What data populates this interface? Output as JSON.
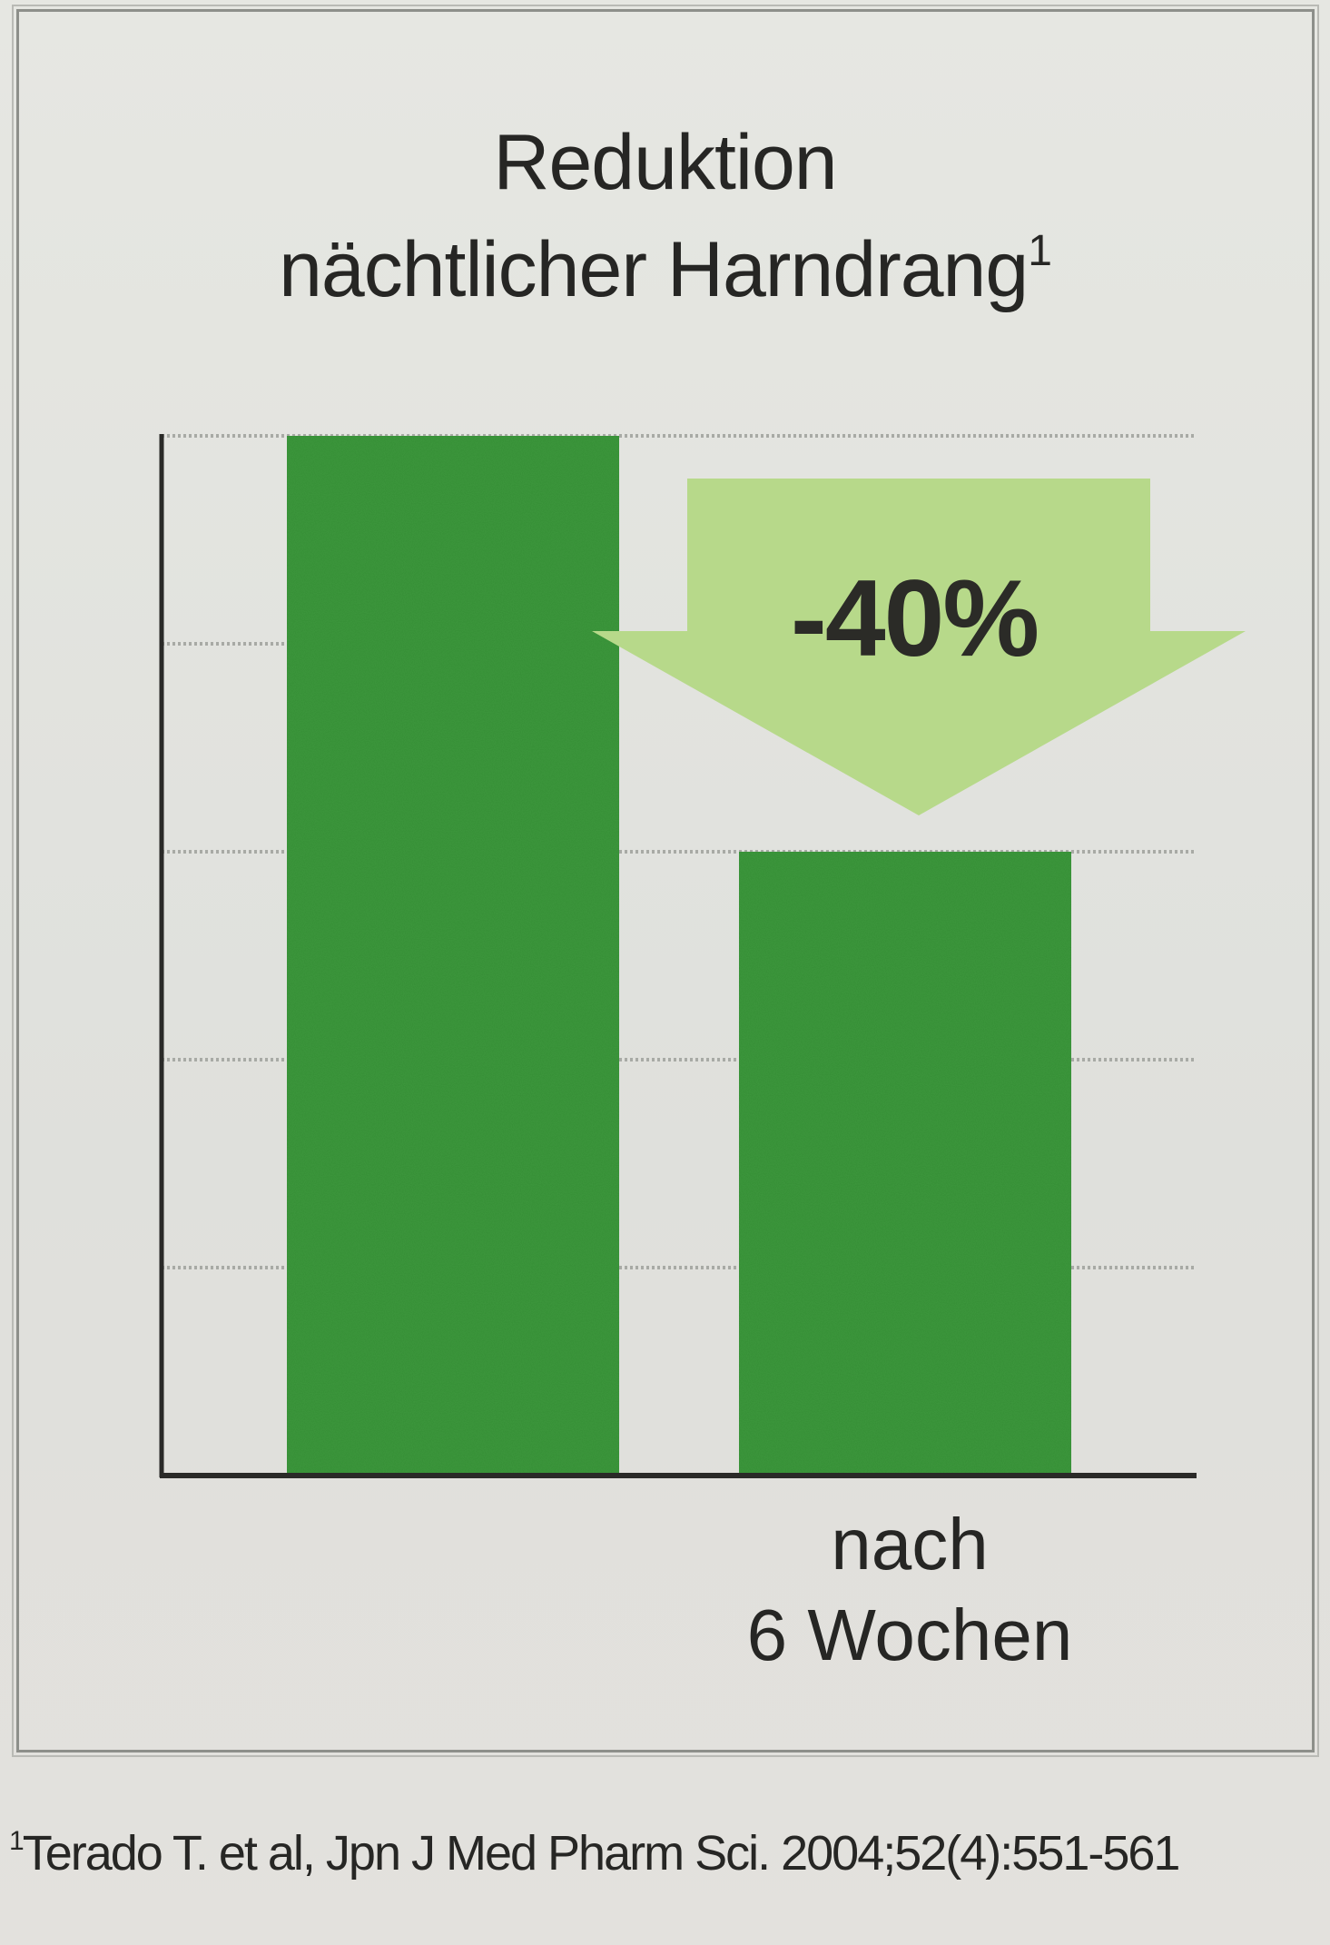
{
  "chart_data": {
    "type": "bar",
    "title": "Reduktion nächtlicher Harndrang",
    "title_line1": "Reduktion",
    "title_line2": "nächtlicher Harndrang",
    "title_footnote_mark": "1",
    "categories": [
      "",
      "nach 6 Wochen"
    ],
    "category_label_lines": [
      "nach",
      "6 Wochen"
    ],
    "values": [
      100,
      60
    ],
    "ylim": [
      0,
      100
    ],
    "grid": true,
    "gridline_values": [
      20,
      40,
      60,
      80,
      100
    ],
    "annotation": {
      "text": "-40%",
      "type": "down-arrow"
    },
    "xlabel": "",
    "ylabel": ""
  },
  "colors": {
    "bar": "#3c9a3c",
    "arrow": "#b7d98a",
    "axis": "#2a2a28",
    "grid": "#a8aaa5"
  },
  "footnote": {
    "mark": "1",
    "text": "Terado T. et al, Jpn J Med Pharm Sci. 2004;52(4):551-561"
  }
}
